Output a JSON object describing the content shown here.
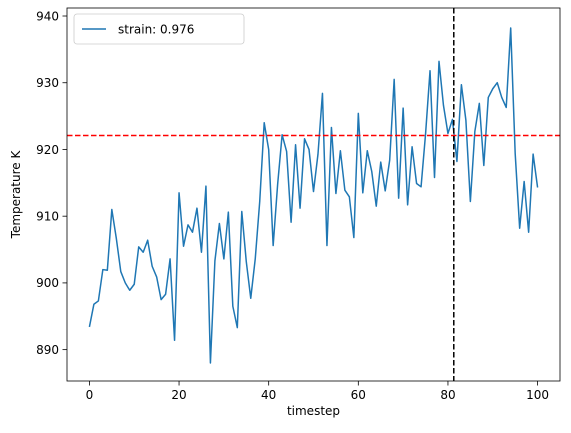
{
  "chart_data": {
    "type": "line",
    "title": "",
    "xlabel": "timestep",
    "ylabel": "Temperature K",
    "xlim": [
      -5,
      105
    ],
    "ylim": [
      885.3,
      941.2
    ],
    "xticks": [
      0,
      20,
      40,
      60,
      80,
      100
    ],
    "yticks": [
      890,
      900,
      910,
      920,
      930,
      940
    ],
    "grid": false,
    "legend_position": "upper left",
    "series": [
      {
        "name": "strain: 0.976",
        "color": "#1f77b4",
        "x": [
          0,
          1,
          2,
          3,
          4,
          5,
          6,
          7,
          8,
          9,
          10,
          11,
          12,
          13,
          14,
          15,
          16,
          17,
          18,
          19,
          20,
          21,
          22,
          23,
          24,
          25,
          26,
          27,
          28,
          29,
          30,
          31,
          32,
          33,
          34,
          35,
          36,
          37,
          38,
          39,
          40,
          41,
          42,
          43,
          44,
          45,
          46,
          47,
          48,
          49,
          50,
          51,
          52,
          53,
          54,
          55,
          56,
          57,
          58,
          59,
          60,
          61,
          62,
          63,
          64,
          65,
          66,
          67,
          68,
          69,
          70,
          71,
          72,
          73,
          74,
          75,
          76,
          77,
          78,
          79,
          80,
          81,
          82,
          83,
          84,
          85,
          86,
          87,
          88,
          89,
          90,
          91,
          92,
          93,
          94,
          95,
          96,
          97,
          98,
          99,
          100
        ],
        "y": [
          893.4,
          896.8,
          897.3,
          902.0,
          901.9,
          911.0,
          906.7,
          901.7,
          900.0,
          898.9,
          899.8,
          905.4,
          904.6,
          906.4,
          902.5,
          900.9,
          897.5,
          898.3,
          903.6,
          891.4,
          913.5,
          905.5,
          908.7,
          907.6,
          911.2,
          904.6,
          914.5,
          888.0,
          903.3,
          908.9,
          903.6,
          910.6,
          896.5,
          893.3,
          910.7,
          903.2,
          897.7,
          903.6,
          912.2,
          924.0,
          920.0,
          905.6,
          914.8,
          922.2,
          919.7,
          909.1,
          920.7,
          911.2,
          921.6,
          920.0,
          913.7,
          919.3,
          928.4,
          905.6,
          923.3,
          913.4,
          919.8,
          913.9,
          912.9,
          906.8,
          925.4,
          913.5,
          919.8,
          916.7,
          911.5,
          918.1,
          913.8,
          918.4,
          930.5,
          912.7,
          926.2,
          911.7,
          920.4,
          914.9,
          914.4,
          922.3,
          931.8,
          915.8,
          933.2,
          926.6,
          922.4,
          924.5,
          918.2,
          929.7,
          924.4,
          912.2,
          922.7,
          926.9,
          917.6,
          927.8,
          929.1,
          930.0,
          927.8,
          926.3,
          938.2,
          919.4,
          908.2,
          915.2,
          907.6,
          919.3,
          914.3
        ]
      }
    ],
    "reference_lines": [
      {
        "orientation": "horizontal",
        "value": 922.1,
        "color": "#ff0000",
        "style": "dashed"
      },
      {
        "orientation": "vertical",
        "value": 81.3,
        "color": "#000000",
        "style": "dashed"
      }
    ]
  }
}
